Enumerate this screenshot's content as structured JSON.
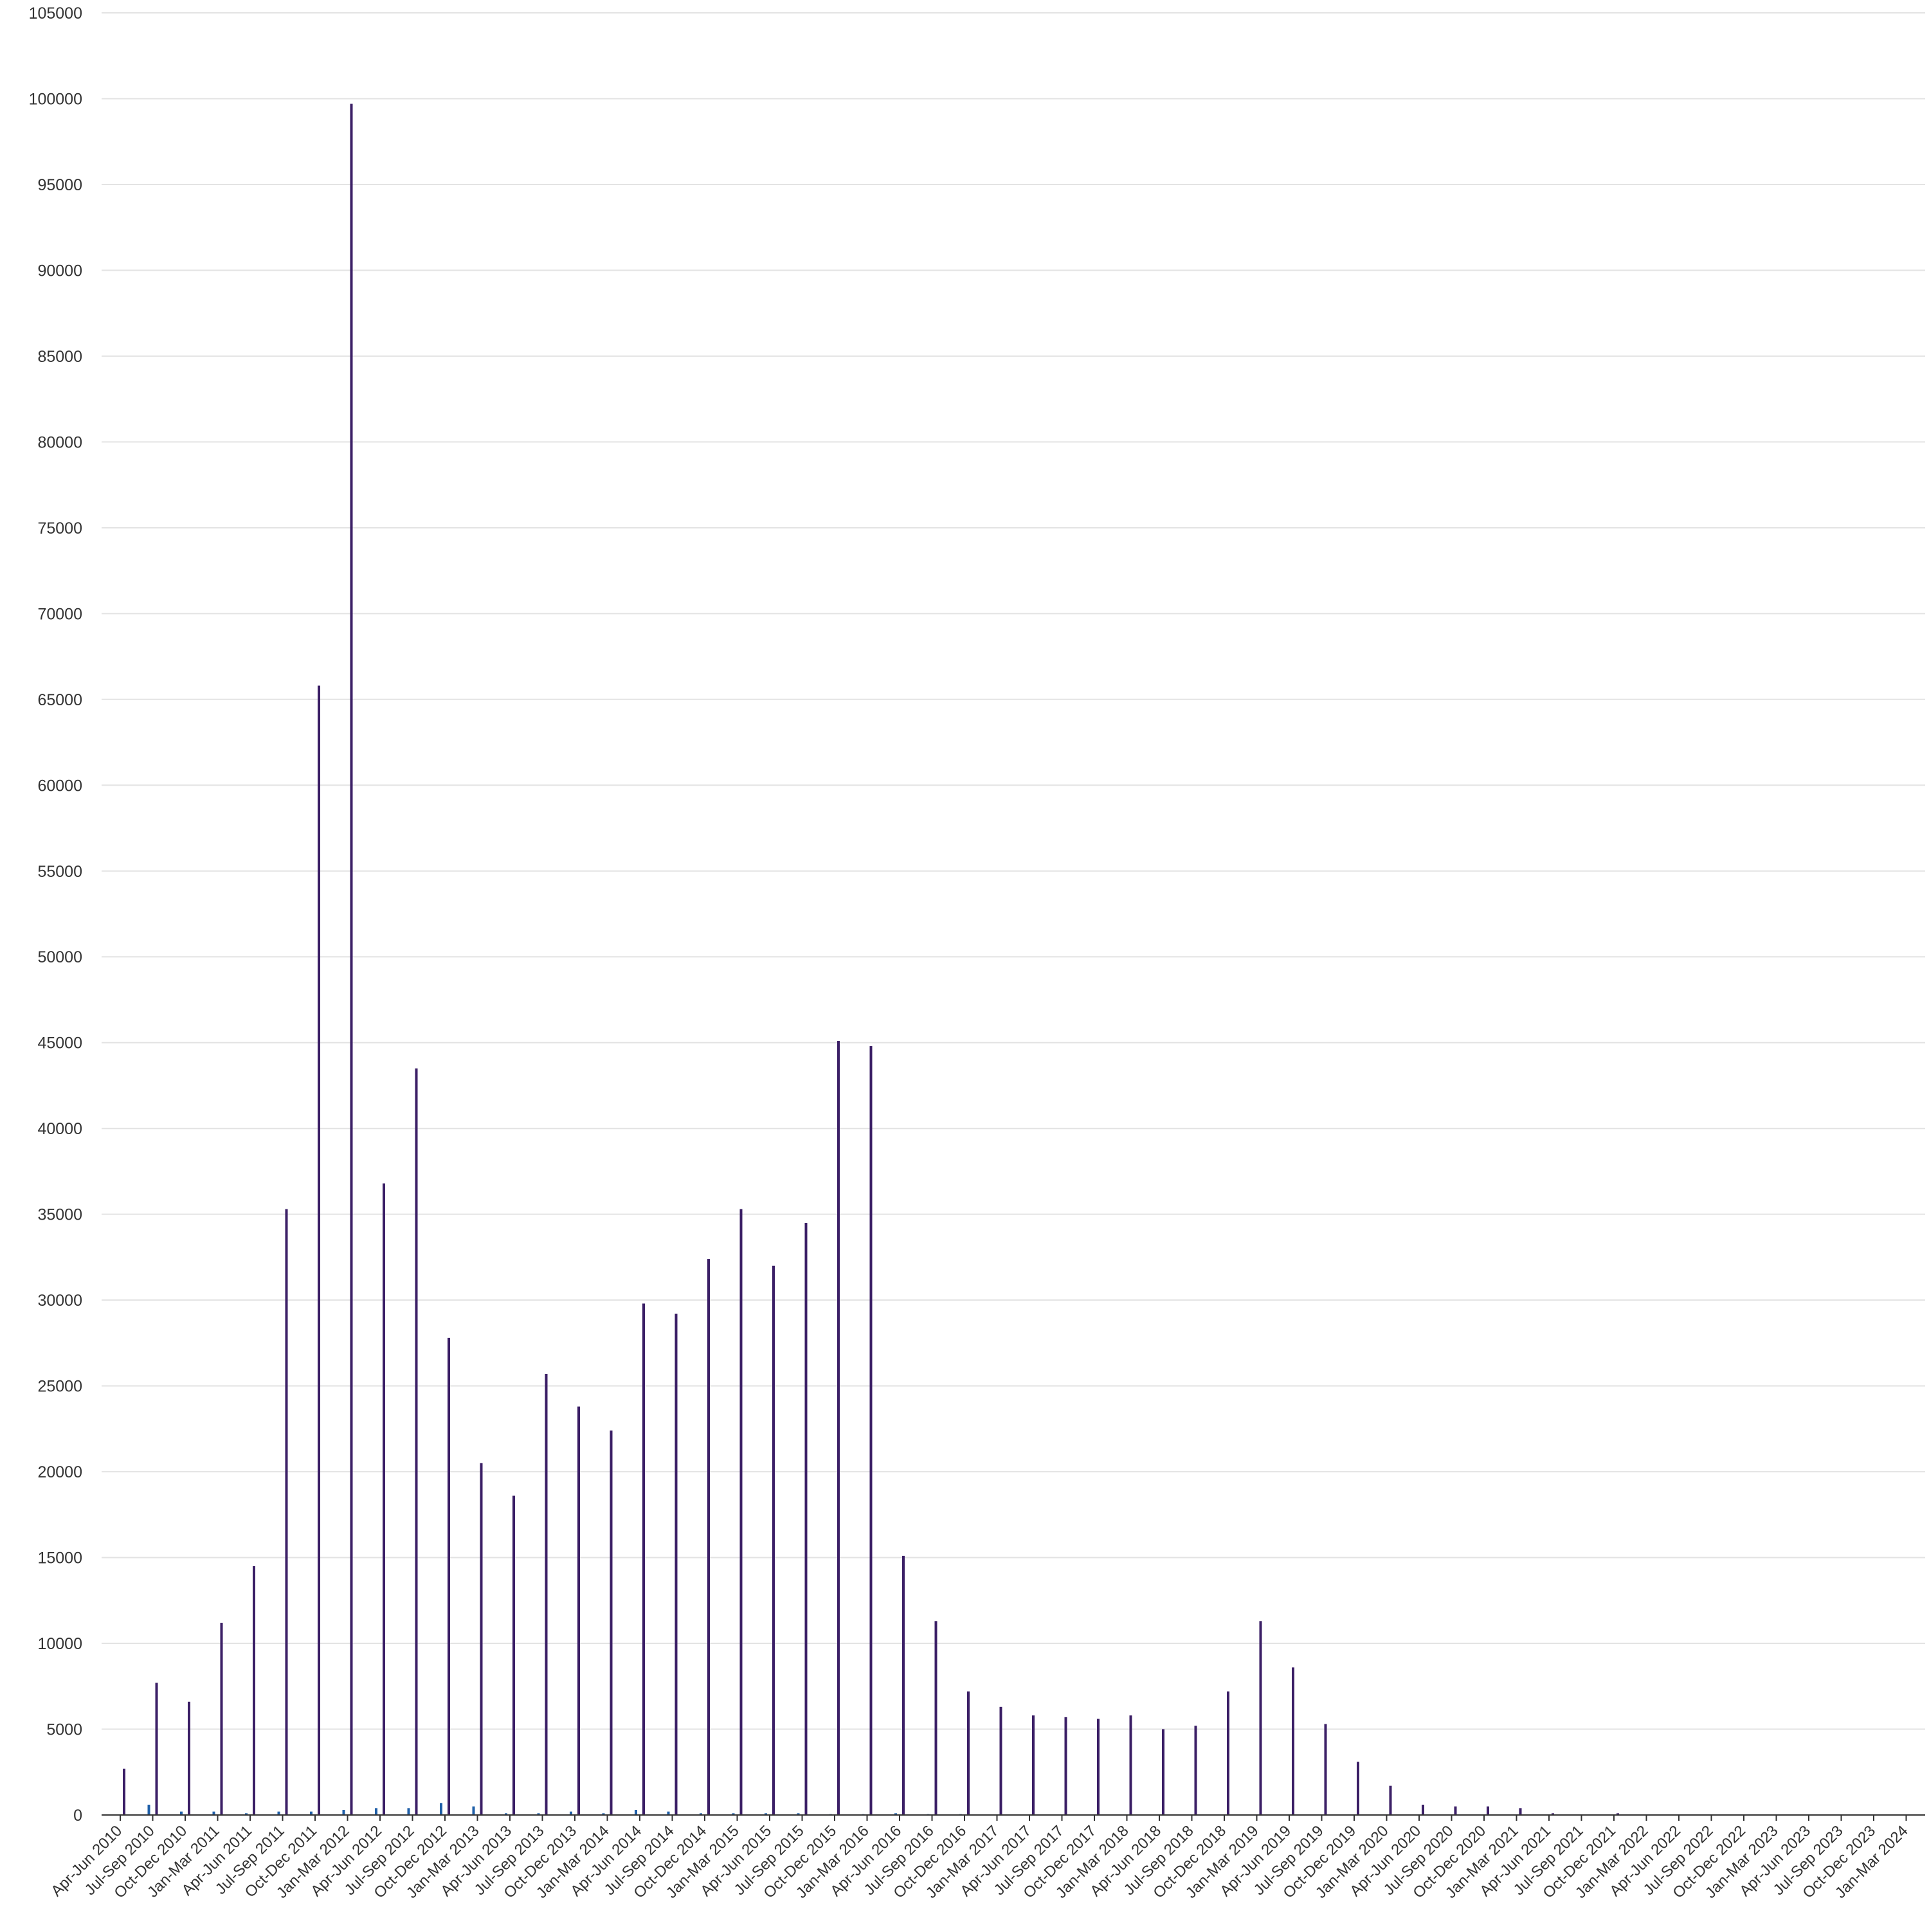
{
  "chart_data": {
    "type": "bar",
    "title": "",
    "xlabel": "",
    "ylabel": "",
    "ylim": [
      0,
      105000
    ],
    "yticks": [
      0,
      5000,
      10000,
      15000,
      20000,
      25000,
      30000,
      35000,
      40000,
      45000,
      50000,
      55000,
      60000,
      65000,
      70000,
      75000,
      80000,
      85000,
      90000,
      95000,
      100000,
      105000
    ],
    "grid": true,
    "legend": "none",
    "categories": [
      "Apr-Jun 2010",
      "Jul-Sep 2010",
      "Oct-Dec 2010",
      "Jan-Mar 2011",
      "Apr-Jun 2011",
      "Jul-Sep 2011",
      "Oct-Dec 2011",
      "Jan-Mar 2012",
      "Apr-Jun 2012",
      "Jul-Sep 2012",
      "Oct-Dec 2012",
      "Jan-Mar 2013",
      "Apr-Jun 2013",
      "Jul-Sep 2013",
      "Oct-Dec 2013",
      "Jan-Mar 2014",
      "Apr-Jun 2014",
      "Jul-Sep 2014",
      "Oct-Dec 2014",
      "Jan-Mar 2015",
      "Apr-Jun 2015",
      "Jul-Sep 2015",
      "Oct-Dec 2015",
      "Jan-Mar 2016",
      "Apr-Jun 2016",
      "Jul-Sep 2016",
      "Oct-Dec 2016",
      "Jan-Mar 2017",
      "Apr-Jun 2017",
      "Jul-Sep 2017",
      "Oct-Dec 2017",
      "Jan-Mar 2018",
      "Apr-Jun 2018",
      "Jul-Sep 2018",
      "Oct-Dec 2018",
      "Jan-Mar 2019",
      "Apr-Jun 2019",
      "Jul-Sep 2019",
      "Oct-Dec 2019",
      "Jan-Mar 2020",
      "Apr-Jun 2020",
      "Jul-Sep 2020",
      "Oct-Dec 2020",
      "Jan-Mar 2021",
      "Apr-Jun 2021",
      "Jul-Sep 2021",
      "Oct-Dec 2021",
      "Jan-Mar 2022",
      "Apr-Jun 2022",
      "Jul-Sep 2022",
      "Oct-Dec 2022",
      "Jan-Mar 2023",
      "Apr-Jun 2023",
      "Jul-Sep 2023",
      "Oct-Dec 2023",
      "Jan-Mar 2024"
    ],
    "series": [
      {
        "color": "#1f5fa8",
        "values": [
          0,
          600,
          200,
          200,
          100,
          200,
          200,
          300,
          400,
          400,
          700,
          500,
          100,
          100,
          200,
          100,
          300,
          200,
          100,
          100,
          100,
          100,
          50,
          50,
          100,
          50,
          50,
          0,
          0,
          0,
          0,
          0,
          0,
          0,
          0,
          0,
          0,
          0,
          0,
          0,
          0,
          0,
          0,
          0,
          0,
          0,
          0,
          0,
          0,
          0,
          0,
          0,
          0,
          0,
          0,
          0
        ]
      },
      {
        "color": "#3b1f66",
        "values": [
          2700,
          7700,
          6600,
          11200,
          14500,
          35300,
          65800,
          99700,
          36800,
          43500,
          27800,
          20500,
          18600,
          25700,
          23800,
          22400,
          29800,
          29200,
          32400,
          35300,
          32000,
          34500,
          45100,
          44800,
          15100,
          11300,
          7200,
          6300,
          5800,
          5700,
          5600,
          5800,
          5000,
          5200,
          7200,
          11300,
          8600,
          5300,
          3100,
          1700,
          600,
          500,
          500,
          400,
          100,
          0,
          100,
          0,
          0,
          0,
          0,
          0,
          0,
          0,
          0,
          0
        ]
      }
    ]
  }
}
